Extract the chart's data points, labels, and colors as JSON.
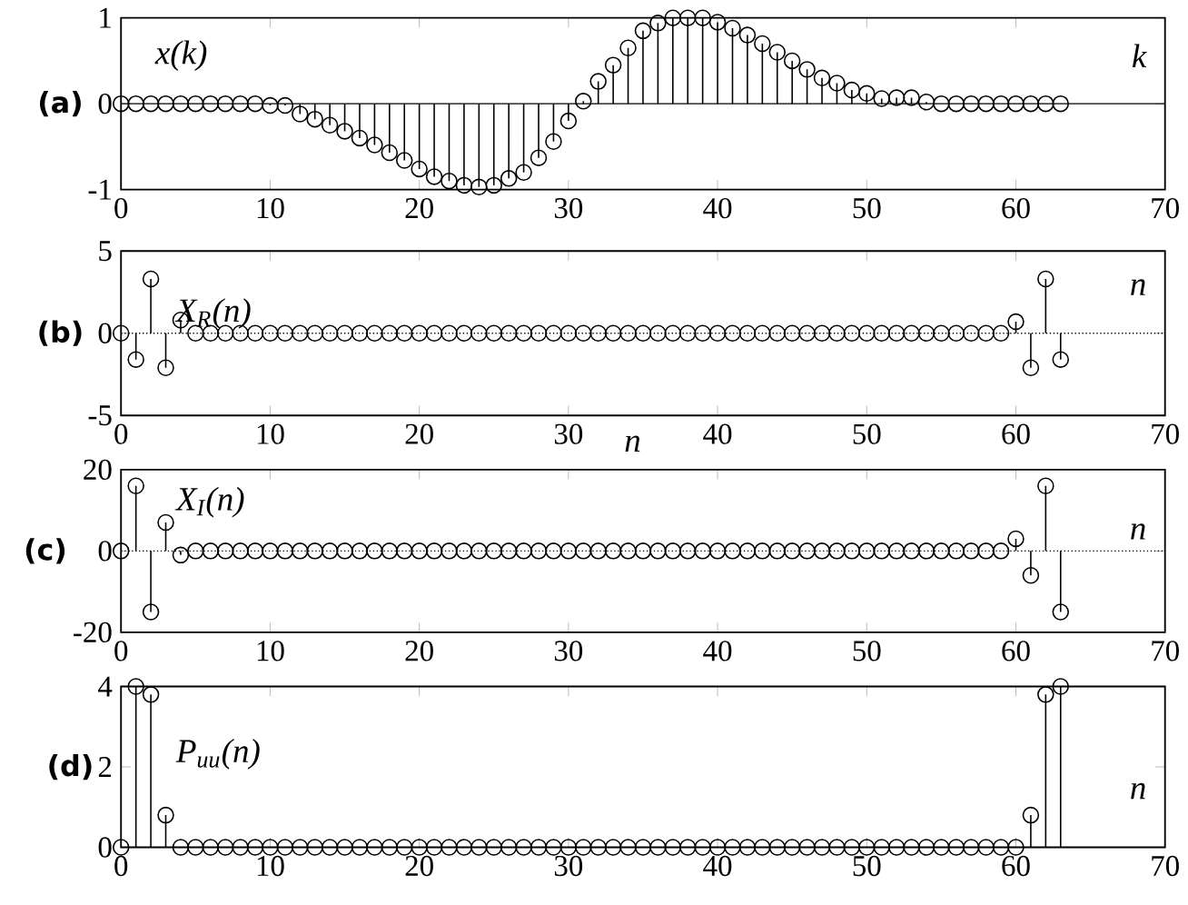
{
  "chart_data": [
    {
      "type": "lollipop",
      "ylabel": "(a)",
      "annotations": [
        "x(k)",
        "k"
      ],
      "color": "#000000",
      "marker": "circle",
      "x": [
        0,
        1,
        2,
        3,
        4,
        5,
        6,
        7,
        8,
        9,
        10,
        11,
        12,
        13,
        14,
        15,
        16,
        17,
        18,
        19,
        20,
        21,
        22,
        23,
        24,
        25,
        26,
        27,
        28,
        29,
        30,
        31,
        32,
        33,
        34,
        35,
        36,
        37,
        38,
        39,
        40,
        41,
        42,
        43,
        44,
        45,
        46,
        47,
        48,
        49,
        50,
        51,
        52,
        53,
        54,
        55,
        56,
        57,
        58,
        59,
        60,
        61,
        62,
        63
      ],
      "values": [
        0,
        0,
        0,
        0,
        0,
        0,
        0,
        0,
        0,
        0,
        -0.02,
        -0.02,
        -0.12,
        -0.18,
        -0.25,
        -0.32,
        -0.4,
        -0.48,
        -0.57,
        -0.66,
        -0.76,
        -0.85,
        -0.9,
        -0.95,
        -0.97,
        -0.95,
        -0.87,
        -0.8,
        -0.63,
        -0.44,
        -0.2,
        0.03,
        0.26,
        0.45,
        0.65,
        0.85,
        0.94,
        1.0,
        1.0,
        1.0,
        0.95,
        0.88,
        0.8,
        0.7,
        0.6,
        0.5,
        0.4,
        0.3,
        0.24,
        0.16,
        0.12,
        0.06,
        0.07,
        0.07,
        0.02,
        0,
        0,
        0,
        0,
        0,
        0,
        0,
        0,
        0
      ],
      "xlim": [
        0,
        70
      ],
      "xticks": [
        0,
        10,
        20,
        30,
        40,
        50,
        60,
        70
      ],
      "ylim": [
        -1,
        1
      ],
      "yticks": [
        -1,
        0,
        1
      ],
      "ref_lines": [
        {
          "axis": "y",
          "value": 0,
          "line_style": "solid"
        }
      ]
    },
    {
      "type": "lollipop",
      "ylabel": "(b)",
      "annotations": [
        "X$_{R}$(n)",
        "n"
      ],
      "color": "#000000",
      "marker": "circle",
      "x": [
        0,
        1,
        2,
        3,
        4,
        5,
        6,
        7,
        8,
        9,
        10,
        11,
        12,
        13,
        14,
        15,
        16,
        17,
        18,
        19,
        20,
        21,
        22,
        23,
        24,
        25,
        26,
        27,
        28,
        29,
        30,
        31,
        32,
        33,
        34,
        35,
        36,
        37,
        38,
        39,
        40,
        41,
        42,
        43,
        44,
        45,
        46,
        47,
        48,
        49,
        50,
        51,
        52,
        53,
        54,
        55,
        56,
        57,
        58,
        59,
        60,
        61,
        62,
        63
      ],
      "values": [
        0,
        -1.6,
        3.3,
        -2.1,
        0.8,
        0,
        0,
        0,
        0,
        0,
        0,
        0,
        0,
        0,
        0,
        0,
        0,
        0,
        0,
        0,
        0,
        0,
        0,
        0,
        0,
        0,
        0,
        0,
        0,
        0,
        0,
        0,
        0,
        0,
        0,
        0,
        0,
        0,
        0,
        0,
        0,
        0,
        0,
        0,
        0,
        0,
        0,
        0,
        0,
        0,
        0,
        0,
        0,
        0,
        0,
        0,
        0,
        0,
        0,
        0,
        0.7,
        -2.1,
        3.3,
        -1.6
      ],
      "xlim": [
        0,
        70
      ],
      "xticks": [
        0,
        10,
        20,
        30,
        40,
        50,
        60,
        70
      ],
      "ylim": [
        -5,
        5
      ],
      "yticks": [
        -5,
        0,
        5
      ],
      "ref_lines": [
        {
          "axis": "y",
          "value": 0,
          "line_style": "dotted"
        }
      ]
    },
    {
      "type": "lollipop",
      "ylabel": "(c)",
      "annotations": [
        "X$_{I}$(n)",
        "n",
        "n"
      ],
      "color": "#000000",
      "marker": "circle",
      "x": [
        0,
        1,
        2,
        3,
        4,
        5,
        6,
        7,
        8,
        9,
        10,
        11,
        12,
        13,
        14,
        15,
        16,
        17,
        18,
        19,
        20,
        21,
        22,
        23,
        24,
        25,
        26,
        27,
        28,
        29,
        30,
        31,
        32,
        33,
        34,
        35,
        36,
        37,
        38,
        39,
        40,
        41,
        42,
        43,
        44,
        45,
        46,
        47,
        48,
        49,
        50,
        51,
        52,
        53,
        54,
        55,
        56,
        57,
        58,
        59,
        60,
        61,
        62,
        63
      ],
      "values": [
        0,
        16,
        -15,
        7,
        -1,
        0,
        0,
        0,
        0,
        0,
        0,
        0,
        0,
        0,
        0,
        0,
        0,
        0,
        0,
        0,
        0,
        0,
        0,
        0,
        0,
        0,
        0,
        0,
        0,
        0,
        0,
        0,
        0,
        0,
        0,
        0,
        0,
        0,
        0,
        0,
        0,
        0,
        0,
        0,
        0,
        0,
        0,
        0,
        0,
        0,
        0,
        0,
        0,
        0,
        0,
        0,
        0,
        0,
        0,
        0,
        3,
        -6,
        16,
        -15
      ],
      "xlim": [
        0,
        70
      ],
      "xticks": [
        0,
        10,
        20,
        30,
        40,
        50,
        60,
        70
      ],
      "ylim": [
        -20,
        20
      ],
      "yticks": [
        -20,
        0,
        20
      ],
      "ref_lines": [
        {
          "axis": "y",
          "value": 0,
          "line_style": "dotted"
        }
      ]
    },
    {
      "type": "lollipop",
      "ylabel": "(d)",
      "annotations": [
        "P$_{uu}$(n)",
        "n"
      ],
      "color": "#000000",
      "marker": "circle",
      "x": [
        0,
        1,
        2,
        3,
        4,
        5,
        6,
        7,
        8,
        9,
        10,
        11,
        12,
        13,
        14,
        15,
        16,
        17,
        18,
        19,
        20,
        21,
        22,
        23,
        24,
        25,
        26,
        27,
        28,
        29,
        30,
        31,
        32,
        33,
        34,
        35,
        36,
        37,
        38,
        39,
        40,
        41,
        42,
        43,
        44,
        45,
        46,
        47,
        48,
        49,
        50,
        51,
        52,
        53,
        54,
        55,
        56,
        57,
        58,
        59,
        60,
        61,
        62,
        63
      ],
      "values": [
        0,
        4,
        3.8,
        0.8,
        0,
        0,
        0,
        0,
        0,
        0,
        0,
        0,
        0,
        0,
        0,
        0,
        0,
        0,
        0,
        0,
        0,
        0,
        0,
        0,
        0,
        0,
        0,
        0,
        0,
        0,
        0,
        0,
        0,
        0,
        0,
        0,
        0,
        0,
        0,
        0,
        0,
        0,
        0,
        0,
        0,
        0,
        0,
        0,
        0,
        0,
        0,
        0,
        0,
        0,
        0,
        0,
        0,
        0,
        0,
        0,
        0,
        0.8,
        3.8,
        4
      ],
      "xlim": [
        0,
        70
      ],
      "xticks": [
        0,
        10,
        20,
        30,
        40,
        50,
        60,
        70
      ],
      "ylim": [
        0,
        4
      ],
      "yticks": [
        0,
        2,
        4
      ]
    }
  ]
}
